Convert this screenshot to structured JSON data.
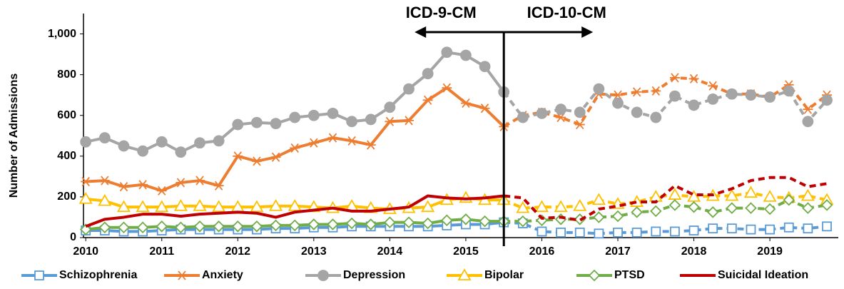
{
  "chart_data": {
    "type": "line",
    "y_label": "Number of Admissions",
    "annotations": [
      {
        "label": "ICD-9-CM",
        "direction": "left"
      },
      {
        "label": "ICD-10-CM",
        "direction": "right"
      }
    ],
    "transition_x": 2015.5,
    "x": [
      2010,
      2010.25,
      2010.5,
      2010.75,
      2011,
      2011.25,
      2011.5,
      2011.75,
      2012,
      2012.25,
      2012.5,
      2012.75,
      2013,
      2013.25,
      2013.5,
      2013.75,
      2014,
      2014.25,
      2014.5,
      2014.75,
      2015,
      2015.25,
      2015.5,
      2015.75,
      2016,
      2016.25,
      2016.5,
      2016.75,
      2017,
      2017.25,
      2017.5,
      2017.75,
      2018,
      2018.25,
      2018.5,
      2018.75,
      2019,
      2019.25,
      2019.5,
      2019.75
    ],
    "xlim": [
      2009.97,
      2019.9
    ],
    "xticks": [
      2010,
      2011,
      2012,
      2013,
      2014,
      2015,
      2016,
      2017,
      2018,
      2019
    ],
    "ylim": [
      0,
      1100
    ],
    "yticks": [
      0,
      200,
      400,
      600,
      800,
      {
        "value": 1000,
        "label": "1,000"
      }
    ],
    "grid": false,
    "legend": "bottom",
    "series": [
      {
        "name": "Schizophrenia",
        "color": "#5b9bd5",
        "marker": "square",
        "values": [
          35,
          35,
          30,
          30,
          35,
          40,
          40,
          40,
          40,
          40,
          45,
          45,
          50,
          50,
          55,
          55,
          55,
          55,
          55,
          60,
          65,
          65,
          75,
          70,
          30,
          25,
          25,
          20,
          25,
          25,
          30,
          30,
          35,
          45,
          45,
          40,
          40,
          50,
          45,
          55
        ]
      },
      {
        "name": "Anxiety",
        "color": "#ed7d31",
        "marker": "asterisk",
        "values": [
          275,
          280,
          250,
          260,
          230,
          270,
          280,
          255,
          400,
          375,
          395,
          440,
          465,
          490,
          475,
          455,
          570,
          575,
          675,
          735,
          660,
          635,
          545,
          600,
          615,
          590,
          555,
          705,
          700,
          715,
          720,
          785,
          780,
          745,
          705,
          705,
          690,
          750,
          630,
          700
        ]
      },
      {
        "name": "Depression",
        "color": "#a5a5a5",
        "marker": "circle",
        "values": [
          470,
          490,
          450,
          425,
          470,
          420,
          465,
          475,
          555,
          565,
          560,
          590,
          600,
          610,
          570,
          580,
          640,
          730,
          805,
          910,
          895,
          840,
          715,
          590,
          610,
          630,
          615,
          730,
          660,
          615,
          590,
          695,
          650,
          680,
          705,
          700,
          690,
          720,
          570,
          675
        ]
      },
      {
        "name": "Bipolar",
        "color": "#ffc000",
        "marker": "triangle",
        "values": [
          190,
          180,
          150,
          150,
          150,
          155,
          155,
          150,
          150,
          150,
          155,
          155,
          150,
          145,
          155,
          145,
          140,
          145,
          150,
          185,
          195,
          185,
          185,
          145,
          150,
          150,
          155,
          185,
          165,
          175,
          200,
          210,
          200,
          205,
          205,
          220,
          200,
          195,
          205,
          185
        ]
      },
      {
        "name": "PTSD",
        "color": "#70ad47",
        "marker": "diamond",
        "values": [
          40,
          50,
          50,
          50,
          55,
          50,
          55,
          55,
          55,
          55,
          60,
          60,
          65,
          65,
          70,
          65,
          75,
          75,
          70,
          85,
          90,
          80,
          80,
          80,
          85,
          90,
          90,
          100,
          105,
          125,
          130,
          160,
          150,
          125,
          145,
          145,
          140,
          185,
          145,
          160
        ]
      },
      {
        "name": "Suicidal Ideation",
        "color": "#c00000",
        "marker": "none",
        "values": [
          55,
          90,
          100,
          115,
          115,
          105,
          115,
          120,
          125,
          120,
          100,
          125,
          135,
          145,
          130,
          130,
          140,
          150,
          205,
          195,
          190,
          195,
          205,
          195,
          95,
          100,
          85,
          140,
          155,
          175,
          175,
          255,
          210,
          210,
          240,
          280,
          295,
          295,
          250,
          265
        ]
      }
    ]
  }
}
